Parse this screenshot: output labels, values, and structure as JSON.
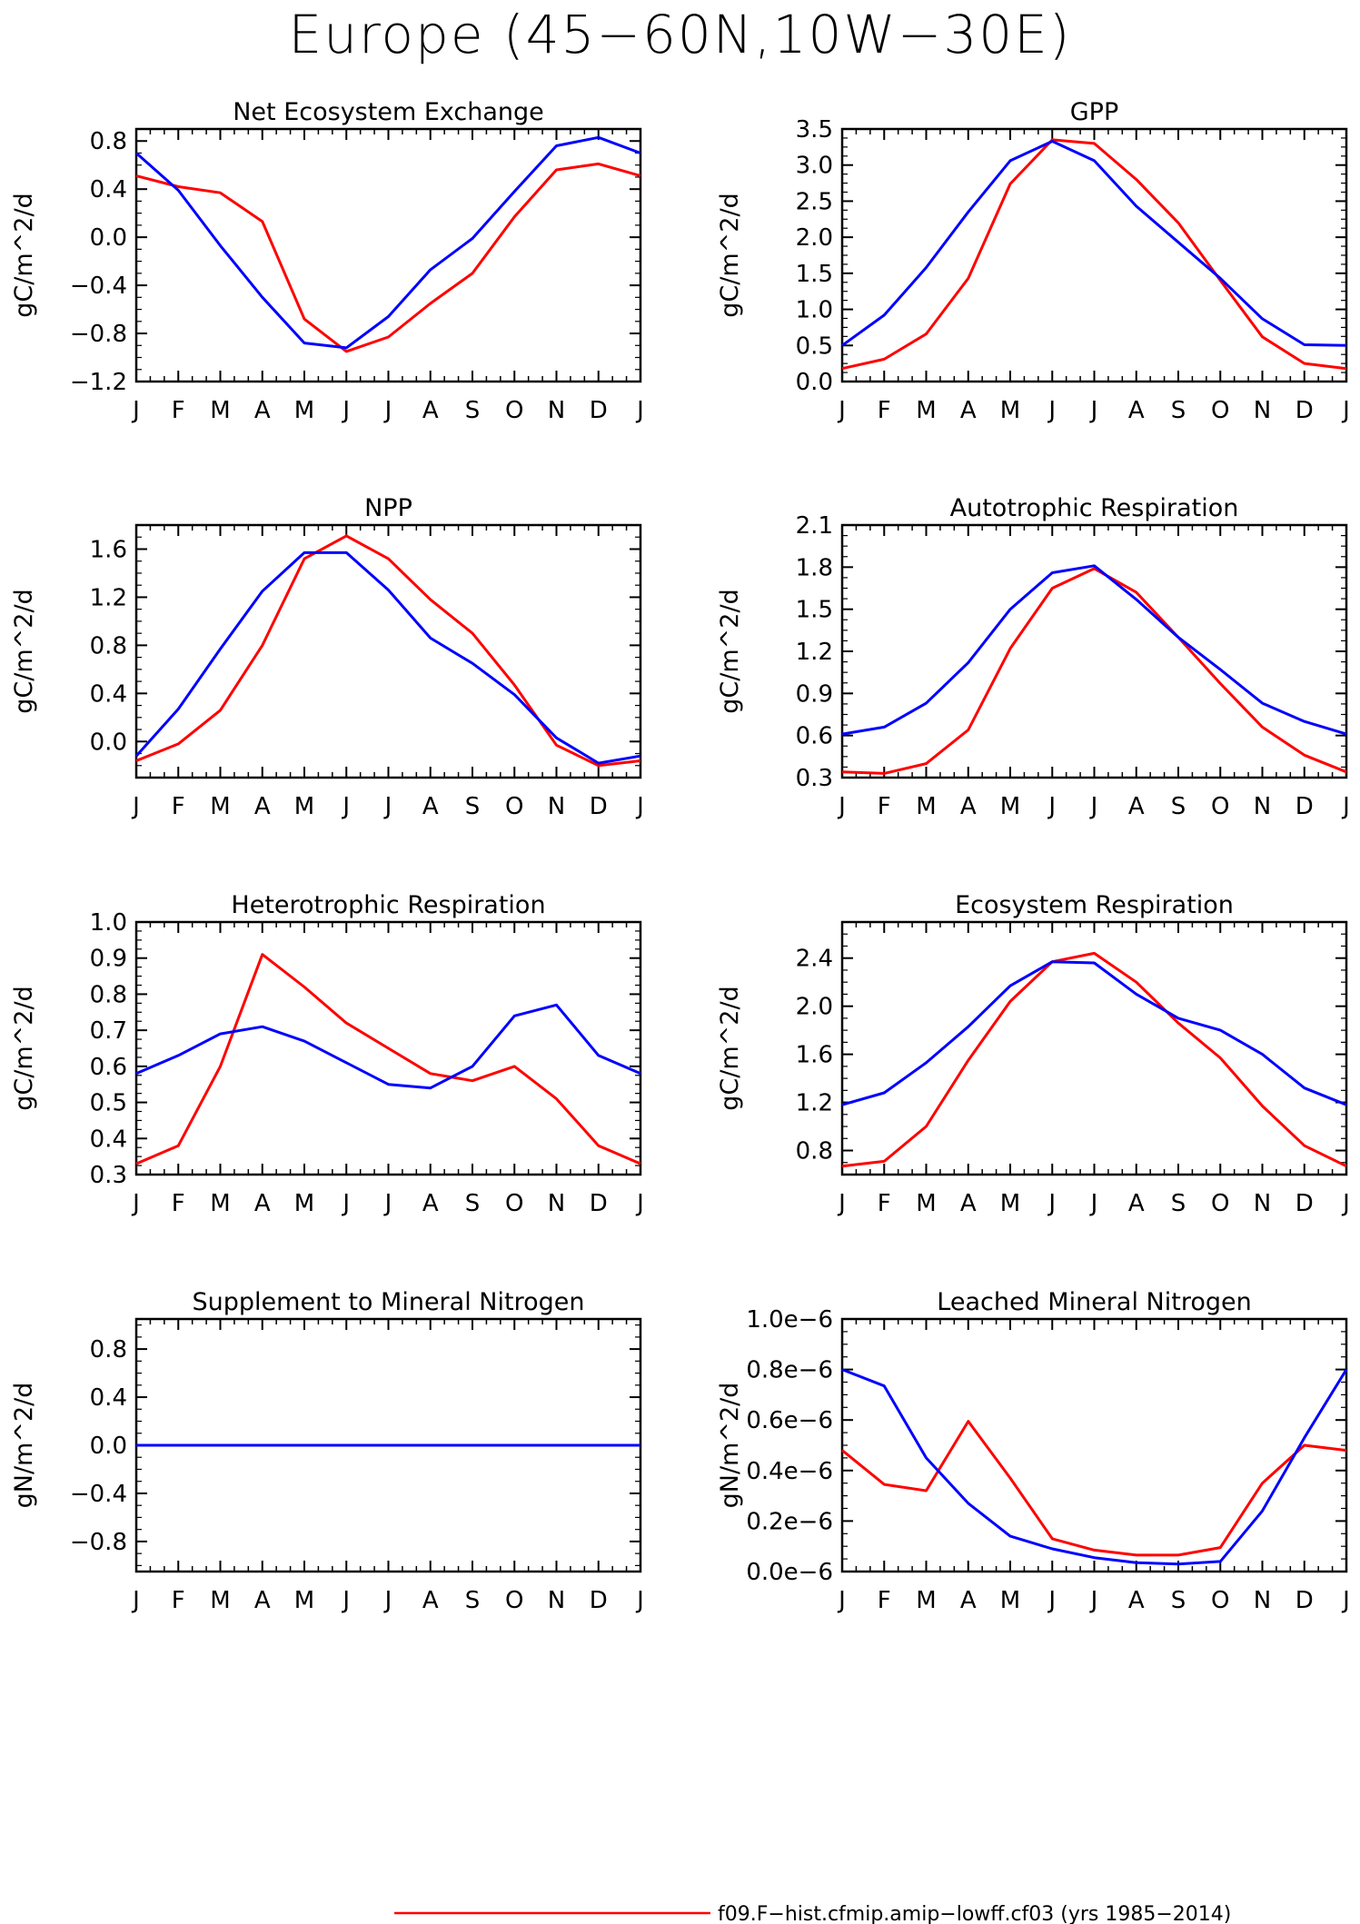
{
  "title": "Europe (45−60N,10W−30E)",
  "colors": {
    "model": "#ff0000",
    "obs": "#0000ff"
  },
  "legend": {
    "label": "f09.F−hist.cfmip.amip−lowff.cf03 (yrs 1985−2014)"
  },
  "chart_data": [
    {
      "type": "line",
      "title": "Net Ecosystem Exchange",
      "ylabel": "gC/m^2/d",
      "categories": [
        "J",
        "F",
        "M",
        "A",
        "M",
        "J",
        "J",
        "A",
        "S",
        "O",
        "N",
        "D",
        "J"
      ],
      "ylim": [
        -1.2,
        0.9
      ],
      "yticks": [
        -1.2,
        -0.8,
        -0.4,
        0.0,
        0.4,
        0.8
      ],
      "ytick_labels": [
        "−1.2",
        "−0.8",
        "−0.4",
        "0.0",
        "0.4",
        "0.8"
      ],
      "series": [
        {
          "color": "#ff0000",
          "values": [
            0.51,
            0.42,
            0.37,
            0.13,
            -0.68,
            -0.95,
            -0.83,
            -0.55,
            -0.3,
            0.17,
            0.56,
            0.61,
            0.51
          ]
        },
        {
          "color": "#0000ff",
          "values": [
            0.7,
            0.39,
            -0.07,
            -0.5,
            -0.88,
            -0.92,
            -0.66,
            -0.27,
            -0.01,
            0.38,
            0.76,
            0.83,
            0.7
          ]
        }
      ]
    },
    {
      "type": "line",
      "title": "GPP",
      "ylabel": "gC/m^2/d",
      "categories": [
        "J",
        "F",
        "M",
        "A",
        "M",
        "J",
        "J",
        "A",
        "S",
        "O",
        "N",
        "D",
        "J"
      ],
      "ylim": [
        0.0,
        3.5
      ],
      "yticks": [
        0.0,
        0.5,
        1.0,
        1.5,
        2.0,
        2.5,
        3.0,
        3.5
      ],
      "ytick_labels": [
        "0.0",
        "0.5",
        "1.0",
        "1.5",
        "2.0",
        "2.5",
        "3.0",
        "3.5"
      ],
      "series": [
        {
          "color": "#ff0000",
          "values": [
            0.18,
            0.31,
            0.66,
            1.43,
            2.74,
            3.35,
            3.3,
            2.8,
            2.2,
            1.4,
            0.62,
            0.25,
            0.18
          ]
        },
        {
          "color": "#0000ff",
          "values": [
            0.5,
            0.92,
            1.58,
            2.35,
            3.06,
            3.33,
            3.06,
            2.43,
            1.93,
            1.43,
            0.87,
            0.51,
            0.5
          ]
        }
      ]
    },
    {
      "type": "line",
      "title": "NPP",
      "ylabel": "gC/m^2/d",
      "categories": [
        "J",
        "F",
        "M",
        "A",
        "M",
        "J",
        "J",
        "A",
        "S",
        "O",
        "N",
        "D",
        "J"
      ],
      "ylim": [
        -0.3,
        1.8
      ],
      "yticks": [
        0.0,
        0.4,
        0.8,
        1.2,
        1.6
      ],
      "ytick_labels": [
        "0.0",
        "0.4",
        "0.8",
        "1.2",
        "1.6"
      ],
      "series": [
        {
          "color": "#ff0000",
          "values": [
            -0.16,
            -0.02,
            0.26,
            0.8,
            1.52,
            1.71,
            1.52,
            1.18,
            0.9,
            0.47,
            -0.03,
            -0.2,
            -0.16
          ]
        },
        {
          "color": "#0000ff",
          "values": [
            -0.12,
            0.27,
            0.77,
            1.25,
            1.57,
            1.57,
            1.26,
            0.86,
            0.65,
            0.39,
            0.03,
            -0.18,
            -0.12
          ]
        }
      ]
    },
    {
      "type": "line",
      "title": "Autotrophic Respiration",
      "ylabel": "gC/m^2/d",
      "categories": [
        "J",
        "F",
        "M",
        "A",
        "M",
        "J",
        "J",
        "A",
        "S",
        "O",
        "N",
        "D",
        "J"
      ],
      "ylim": [
        0.3,
        2.1
      ],
      "yticks": [
        0.3,
        0.6,
        0.9,
        1.2,
        1.5,
        1.8,
        2.1
      ],
      "ytick_labels": [
        "0.3",
        "0.6",
        "0.9",
        "1.2",
        "1.5",
        "1.8",
        "2.1"
      ],
      "series": [
        {
          "color": "#ff0000",
          "values": [
            0.34,
            0.33,
            0.4,
            0.64,
            1.22,
            1.65,
            1.79,
            1.62,
            1.3,
            0.97,
            0.66,
            0.46,
            0.34
          ]
        },
        {
          "color": "#0000ff",
          "values": [
            0.61,
            0.66,
            0.83,
            1.12,
            1.5,
            1.76,
            1.81,
            1.57,
            1.3,
            1.07,
            0.83,
            0.7,
            0.61
          ]
        }
      ]
    },
    {
      "type": "line",
      "title": "Heterotrophic Respiration",
      "ylabel": "gC/m^2/d",
      "categories": [
        "J",
        "F",
        "M",
        "A",
        "M",
        "J",
        "J",
        "A",
        "S",
        "O",
        "N",
        "D",
        "J"
      ],
      "ylim": [
        0.3,
        1.0
      ],
      "yticks": [
        0.3,
        0.4,
        0.5,
        0.6,
        0.7,
        0.8,
        0.9,
        1.0
      ],
      "ytick_labels": [
        "0.3",
        "0.4",
        "0.5",
        "0.6",
        "0.7",
        "0.8",
        "0.9",
        "1.0"
      ],
      "series": [
        {
          "color": "#ff0000",
          "values": [
            0.33,
            0.38,
            0.6,
            0.91,
            0.82,
            0.72,
            0.65,
            0.58,
            0.56,
            0.6,
            0.51,
            0.38,
            0.33
          ]
        },
        {
          "color": "#0000ff",
          "values": [
            0.58,
            0.63,
            0.69,
            0.71,
            0.67,
            0.61,
            0.55,
            0.54,
            0.6,
            0.74,
            0.77,
            0.63,
            0.58
          ]
        }
      ]
    },
    {
      "type": "line",
      "title": "Ecosystem Respiration",
      "ylabel": "gC/m^2/d",
      "categories": [
        "J",
        "F",
        "M",
        "A",
        "M",
        "J",
        "J",
        "A",
        "S",
        "O",
        "N",
        "D",
        "J"
      ],
      "ylim": [
        0.6,
        2.7
      ],
      "yticks": [
        0.8,
        1.2,
        1.6,
        2.0,
        2.4
      ],
      "ytick_labels": [
        "0.8",
        "1.2",
        "1.6",
        "2.0",
        "2.4"
      ],
      "series": [
        {
          "color": "#ff0000",
          "values": [
            0.67,
            0.71,
            1.0,
            1.55,
            2.04,
            2.37,
            2.44,
            2.2,
            1.86,
            1.57,
            1.17,
            0.84,
            0.67
          ]
        },
        {
          "color": "#0000ff",
          "values": [
            1.18,
            1.28,
            1.53,
            1.83,
            2.17,
            2.37,
            2.36,
            2.1,
            1.9,
            1.8,
            1.6,
            1.32,
            1.18
          ]
        }
      ]
    },
    {
      "type": "line",
      "title": "Supplement to Mineral Nitrogen",
      "ylabel": "gN/m^2/d",
      "categories": [
        "J",
        "F",
        "M",
        "A",
        "M",
        "J",
        "J",
        "A",
        "S",
        "O",
        "N",
        "D",
        "J"
      ],
      "ylim": [
        -1.05,
        1.05
      ],
      "yticks": [
        -0.8,
        -0.4,
        0.0,
        0.4,
        0.8
      ],
      "ytick_labels": [
        "−0.8",
        "−0.4",
        "0.0",
        "0.4",
        "0.8"
      ],
      "series": [
        {
          "color": "#ff0000",
          "values": [
            0,
            0,
            0,
            0,
            0,
            0,
            0,
            0,
            0,
            0,
            0,
            0,
            0
          ]
        },
        {
          "color": "#0000ff",
          "values": [
            0,
            0,
            0,
            0,
            0,
            0,
            0,
            0,
            0,
            0,
            0,
            0,
            0
          ]
        }
      ]
    },
    {
      "type": "line",
      "title": "Leached Mineral Nitrogen",
      "ylabel": "gN/m^2/d",
      "categories": [
        "J",
        "F",
        "M",
        "A",
        "M",
        "J",
        "J",
        "A",
        "S",
        "O",
        "N",
        "D",
        "J"
      ],
      "ylim": [
        0.0,
        1e-06
      ],
      "yticks": [
        0.0,
        2e-07,
        4e-07,
        6e-07,
        8e-07,
        1e-06
      ],
      "ytick_labels": [
        "0.0e−6",
        "0.2e−6",
        "0.4e−6",
        "0.6e−6",
        "0.8e−6",
        "1.0e−6"
      ],
      "series": [
        {
          "color": "#ff0000",
          "values": [
            4.8e-07,
            3.45e-07,
            3.2e-07,
            5.95e-07,
            3.7e-07,
            1.3e-07,
            8.5e-08,
            6.5e-08,
            6.5e-08,
            9.5e-08,
            3.5e-07,
            5e-07,
            4.8e-07
          ]
        },
        {
          "color": "#0000ff",
          "values": [
            8e-07,
            7.35e-07,
            4.5e-07,
            2.7e-07,
            1.4e-07,
            9e-08,
            5.5e-08,
            3.5e-08,
            3e-08,
            4e-08,
            2.4e-07,
            5.3e-07,
            8e-07
          ]
        }
      ]
    }
  ]
}
